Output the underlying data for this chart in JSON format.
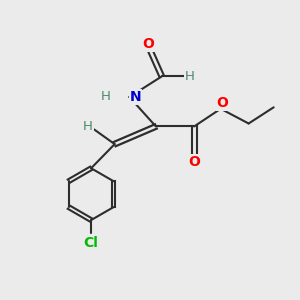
{
  "bg_color": "#ebebeb",
  "bond_color": "#2d2d2d",
  "colors": {
    "O": "#ff0000",
    "N": "#0000cc",
    "Cl": "#00bb00",
    "H": "#4a8a6a",
    "C": "#2d2d2d"
  }
}
